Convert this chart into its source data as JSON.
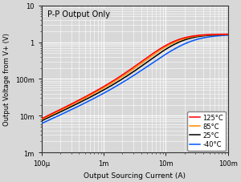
{
  "title": "P-P Output Only",
  "xlabel": "Output Sourcing Current (A)",
  "ylabel": "Output Voltage from V+ (V)",
  "xlim": [
    0.0001,
    0.1
  ],
  "ylim": [
    0.001,
    10
  ],
  "series": {
    "125C": {
      "color": "#ff0000",
      "label": "125°C"
    },
    "85C": {
      "color": "#ff8800",
      "label": "85°C"
    },
    "25C": {
      "color": "#000000",
      "label": "25°C"
    },
    "neg40C": {
      "color": "#0055ff",
      "label": "-40°C"
    }
  },
  "bg_color": "#d8d8d8",
  "grid_color": "#ffffff",
  "annotation": "P-P Output Only",
  "annotation_fontsize": 7,
  "xlabel_fontsize": 6.5,
  "ylabel_fontsize": 6,
  "tick_fontsize": 6,
  "legend_fontsize": 6
}
